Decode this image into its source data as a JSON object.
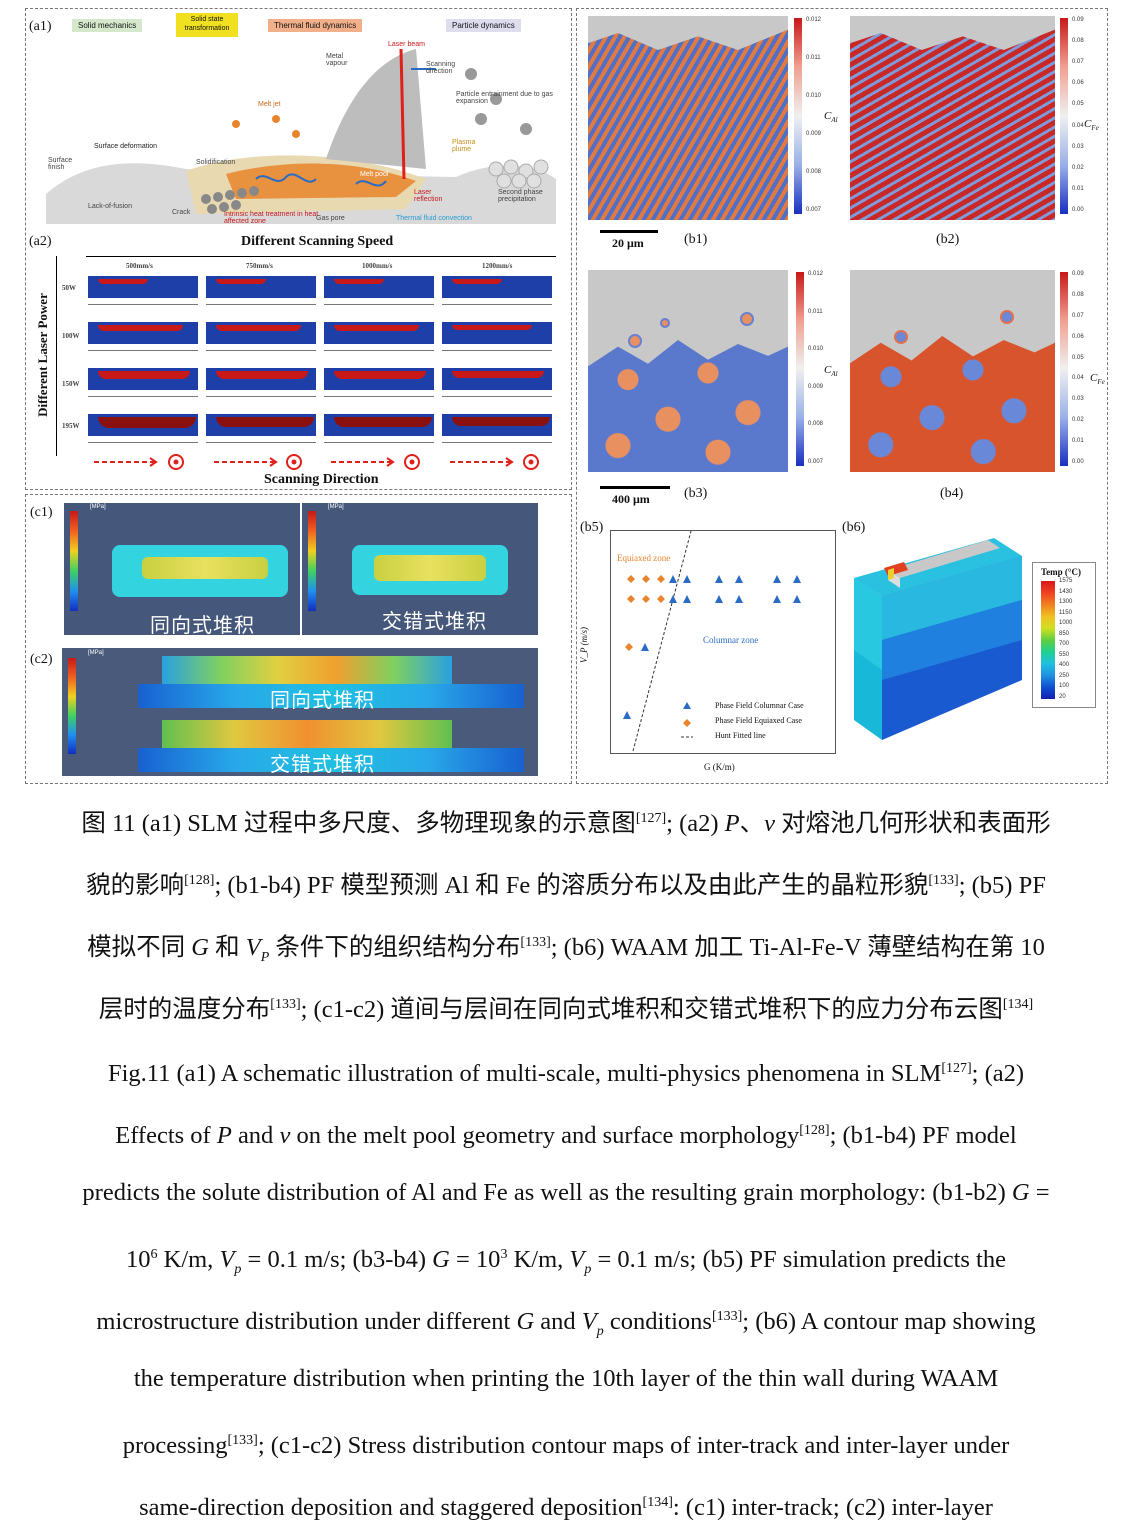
{
  "a1": {
    "label": "(a1)",
    "tags": [
      "Solid mechanics",
      "Solid state transformation",
      "Thermal fluid dynamics",
      "Particle dynamics"
    ],
    "annotations": [
      "Laser beam",
      "Scanning direction",
      "Metal vapour",
      "Melt jet",
      "Particle entrainment due to gas expansion",
      "Surface deformation",
      "Solidification",
      "Plasma plume",
      "Surface finish",
      "Melt pool",
      "Lack-of-fusion",
      "Crack",
      "Intrinsic heat treatment in heat affected zone",
      "Gas pore",
      "Laser reflection",
      "Thermal fluid convection",
      "Second phase precipitation"
    ]
  },
  "a2": {
    "label": "(a2)",
    "title": "Different Scanning Speed",
    "ylabel": "Different Laser Power",
    "speeds": [
      "500mm/s",
      "750mm/s",
      "1000mm/s",
      "1200mm/s"
    ],
    "powers": [
      "50W",
      "100W",
      "150W",
      "195W"
    ],
    "xlabel": "Scanning Direction"
  },
  "b": {
    "labels": [
      "(b1)",
      "(b2)",
      "(b3)",
      "(b4)",
      "(b5)",
      "(b6)"
    ],
    "scale1": "20 μm",
    "scale2": "400 μm",
    "cal_label": "C",
    "cal_sub": "Al",
    "cfe_label": "C",
    "cfe_sub": "Fe",
    "cal_ticks": [
      "0.012",
      "0.011",
      "0.010",
      "0.009",
      "0.008",
      "0.007"
    ],
    "cfe_ticks": [
      "0.09",
      "0.08",
      "0.07",
      "0.06",
      "0.05",
      "0.04",
      "0.03",
      "0.02",
      "0.01",
      "0.00"
    ]
  },
  "b5": {
    "equiaxed": "Equiaxed zone",
    "columnar": "Columnar zone",
    "ylabel": "V_P (m/s)",
    "xlabel": "G (K/m)",
    "legend": [
      "Phase Field Columnar Case",
      "Phase Field Equiaxed Case",
      "Hunt Fitted line"
    ]
  },
  "b6": {
    "legend_title": "Temp (°C)",
    "ticks": [
      "1575",
      "1430",
      "1300",
      "1150",
      "1000",
      "850",
      "700",
      "550",
      "400",
      "250",
      "100",
      "20"
    ]
  },
  "c": {
    "c1_label": "(c1)",
    "c2_label": "(c2)",
    "same": "同向式堆积",
    "staggered": "交错式堆积",
    "unit": "[MPa]",
    "c1_ticks": [
      "5.33e+02",
      "4.80e+02",
      "4.27e+02",
      "3.74e+02",
      "3.21e+02",
      "2.68e+02",
      "2.15e+02",
      "1.62e+02",
      "1.09e+02",
      "5.61e+01",
      "3.10e+00"
    ],
    "c2_ticks": [
      "5.06e+02",
      "4.55e+02",
      "4.05e+02",
      "3.54e+02",
      "3.04e+02",
      "2.53e+02",
      "2.03e+02",
      "1.52e+02",
      "1.02e+02",
      "5.13e+01",
      "5.00e+00"
    ]
  },
  "caption_cn": [
    "图 11 (a1) SLM 过程中多尺度、多物理现象的示意图",
    "[127]",
    "; (a2) ",
    "P",
    "、",
    "v",
    " 对熔池几何形状和表面形",
    "貌的影响",
    "[128]",
    "; (b1-b4) PF 模型预测 Al 和 Fe 的溶质分布以及由此产生的晶粒形貌",
    "[133]",
    "; (b5) PF",
    "模拟不同 ",
    "G",
    " 和 ",
    "V",
    "P",
    " 条件下的组织结构分布",
    "[133]",
    "; (b6) WAAM 加工 Ti-Al-Fe-V 薄壁结构在第 10",
    "层时的温度分布",
    "[133]",
    "; (c1-c2)  道间与层间在同向式堆积和交错式堆积下的应力分布云图",
    "[134]"
  ],
  "caption_en": [
    "Fig.11 (a1) A schematic illustration of multi-scale, multi-physics phenomena in SLM",
    "[127]",
    "; (a2)",
    "Effects of ",
    "P",
    " and ",
    "v",
    " on the melt pool geometry and surface morphology",
    "[128]",
    "; (b1-b4) PF model",
    "predicts the solute distribution of Al and Fe as well as the resulting grain morphology: (b1-b2) ",
    "G",
    " =",
    "10",
    "6",
    " K/m, ",
    "V",
    "p",
    " = 0.1 m/s; (b3-b4) ",
    "G",
    " = 10",
    "3",
    " K/m, ",
    "V",
    "p",
    " = 0.1 m/s; (b5) PF simulation predicts the",
    "microstructure distribution under different ",
    "G",
    " and ",
    "V",
    "p",
    " conditions",
    "[133]",
    "; (b6) A contour map showing",
    "the temperature distribution when printing the 10th layer of the thin wall during WAAM",
    "processing",
    "[133]",
    "; (c1-c2) Stress distribution contour maps of inter-track and inter-layer under",
    "same-direction deposition and staggered deposition",
    "[134]",
    ": (c1) inter-track; (c2) inter-layer"
  ]
}
